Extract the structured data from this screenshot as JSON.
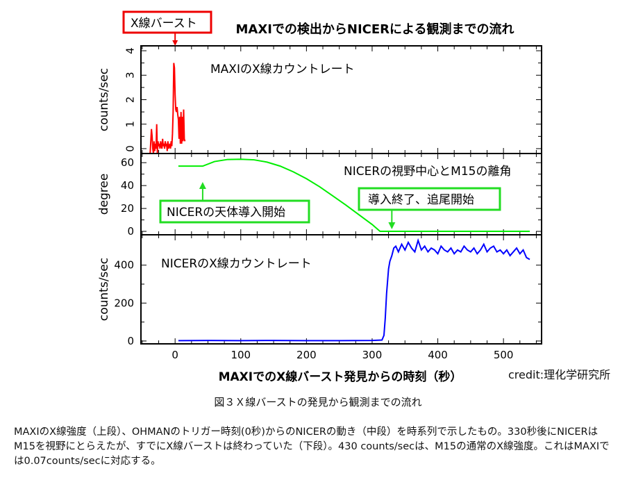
{
  "chart_data": [
    {
      "type": "line",
      "title": "MAXIでの検出からNICERによる観測までの流れ",
      "panel_label": "MAXIのX線カウントレート",
      "ylabel": "counts/sec",
      "ylim": [
        -0.2,
        4.2
      ],
      "yticks": [
        0,
        1,
        2,
        3,
        4
      ],
      "color": "#ff0000",
      "x": [
        -38,
        -36,
        -35,
        -34,
        -33,
        -32,
        -31,
        -30,
        -29,
        -28,
        -27,
        -26,
        -25,
        -24,
        -23,
        -22,
        -21,
        -20,
        -19,
        -18,
        -17,
        -16,
        -15,
        -14,
        -13,
        -12,
        -11,
        -10,
        -9,
        -8,
        -7,
        -6,
        -5,
        -4,
        -3,
        -2,
        -1,
        0,
        1,
        2,
        3,
        4,
        5,
        6,
        7,
        8,
        9,
        10,
        11,
        12,
        13,
        14,
        15
      ],
      "y": [
        -0.2,
        0.8,
        0.5,
        0.0,
        -0.2,
        0.3,
        -0.1,
        0.2,
        0.0,
        1.0,
        -0.2,
        0.3,
        0.1,
        0.2,
        0.0,
        0.3,
        0.1,
        0.0,
        0.4,
        0.1,
        0.2,
        0.0,
        0.3,
        0.1,
        0.2,
        -0.1,
        0.3,
        0.0,
        0.1,
        0.2,
        0.0,
        0.3,
        0.1,
        0.6,
        1.5,
        3.5,
        3.3,
        2.2,
        1.6,
        1.5,
        1.7,
        1.4,
        1.2,
        0.4,
        1.3,
        0.2,
        1.5,
        0.2,
        1.3,
        0.3,
        1.6,
        0.4,
        0.3
      ]
    },
    {
      "type": "line",
      "panel_label": "NICERの視野中心とM15の離角",
      "ylabel": "degree",
      "ylim": [
        -3,
        68
      ],
      "yticks": [
        0,
        20,
        40,
        60
      ],
      "color": "#00ee00",
      "x": [
        5,
        42,
        60,
        80,
        100,
        120,
        140,
        160,
        180,
        200,
        220,
        240,
        260,
        280,
        300,
        312,
        330,
        360,
        400,
        450,
        500,
        540
      ],
      "y": [
        57,
        57,
        61,
        62.8,
        63,
        62.5,
        60.5,
        57,
        52,
        46,
        39,
        31,
        23,
        14.5,
        6,
        0,
        0,
        0,
        0,
        0,
        0,
        0
      ],
      "annotations": [
        {
          "text": "NICERの天体導入開始",
          "x": 42
        },
        {
          "text": "導入終了、追尾開始",
          "x": 330
        }
      ]
    },
    {
      "type": "line",
      "panel_label": "NICERのX線カウントレート",
      "ylabel": "counts/sec",
      "ylim": [
        -15,
        560
      ],
      "yticks": [
        0,
        200,
        400
      ],
      "color": "#0000ff",
      "x": [
        5,
        50,
        100,
        150,
        200,
        250,
        300,
        315,
        318,
        320,
        322,
        325,
        327,
        330,
        333,
        336,
        340,
        345,
        350,
        355,
        360,
        365,
        370,
        375,
        380,
        385,
        390,
        395,
        400,
        405,
        410,
        415,
        420,
        425,
        430,
        435,
        440,
        445,
        450,
        455,
        460,
        465,
        470,
        475,
        480,
        485,
        490,
        495,
        500,
        505,
        510,
        515,
        520,
        525,
        530,
        535,
        540
      ],
      "y": [
        2,
        3,
        2,
        3,
        2,
        2,
        3,
        5,
        30,
        120,
        250,
        380,
        420,
        450,
        490,
        500,
        470,
        510,
        480,
        520,
        490,
        470,
        530,
        480,
        500,
        470,
        490,
        480,
        460,
        500,
        480,
        470,
        490,
        460,
        480,
        470,
        500,
        480,
        470,
        490,
        460,
        480,
        510,
        470,
        490,
        500,
        470,
        480,
        460,
        480,
        450,
        470,
        490,
        460,
        480,
        440,
        430
      ]
    }
  ],
  "xticks": [
    0,
    100,
    200,
    300,
    400,
    500
  ],
  "xlim": [
    -52,
    558
  ],
  "xlabel": "MAXIでのX線バースト発見からの時刻（秒）",
  "burst_label": "X線バースト",
  "credit": "credit:理化学研究所",
  "caption": "図３Ｘ線バーストの発見から観測までの流れ",
  "description": "MAXIのX線強度（上段）、OHMANのトリガー時刻(0秒)からのNICERの動き（中段）を時系列で示したもの。330秒後にNICERはM15を視野にとらえたが、すでにX線バーストは終わっていた（下段）。430 counts/secは、M15の通常のX線強度。これはMAXIでは0.07counts/secに対応する。"
}
